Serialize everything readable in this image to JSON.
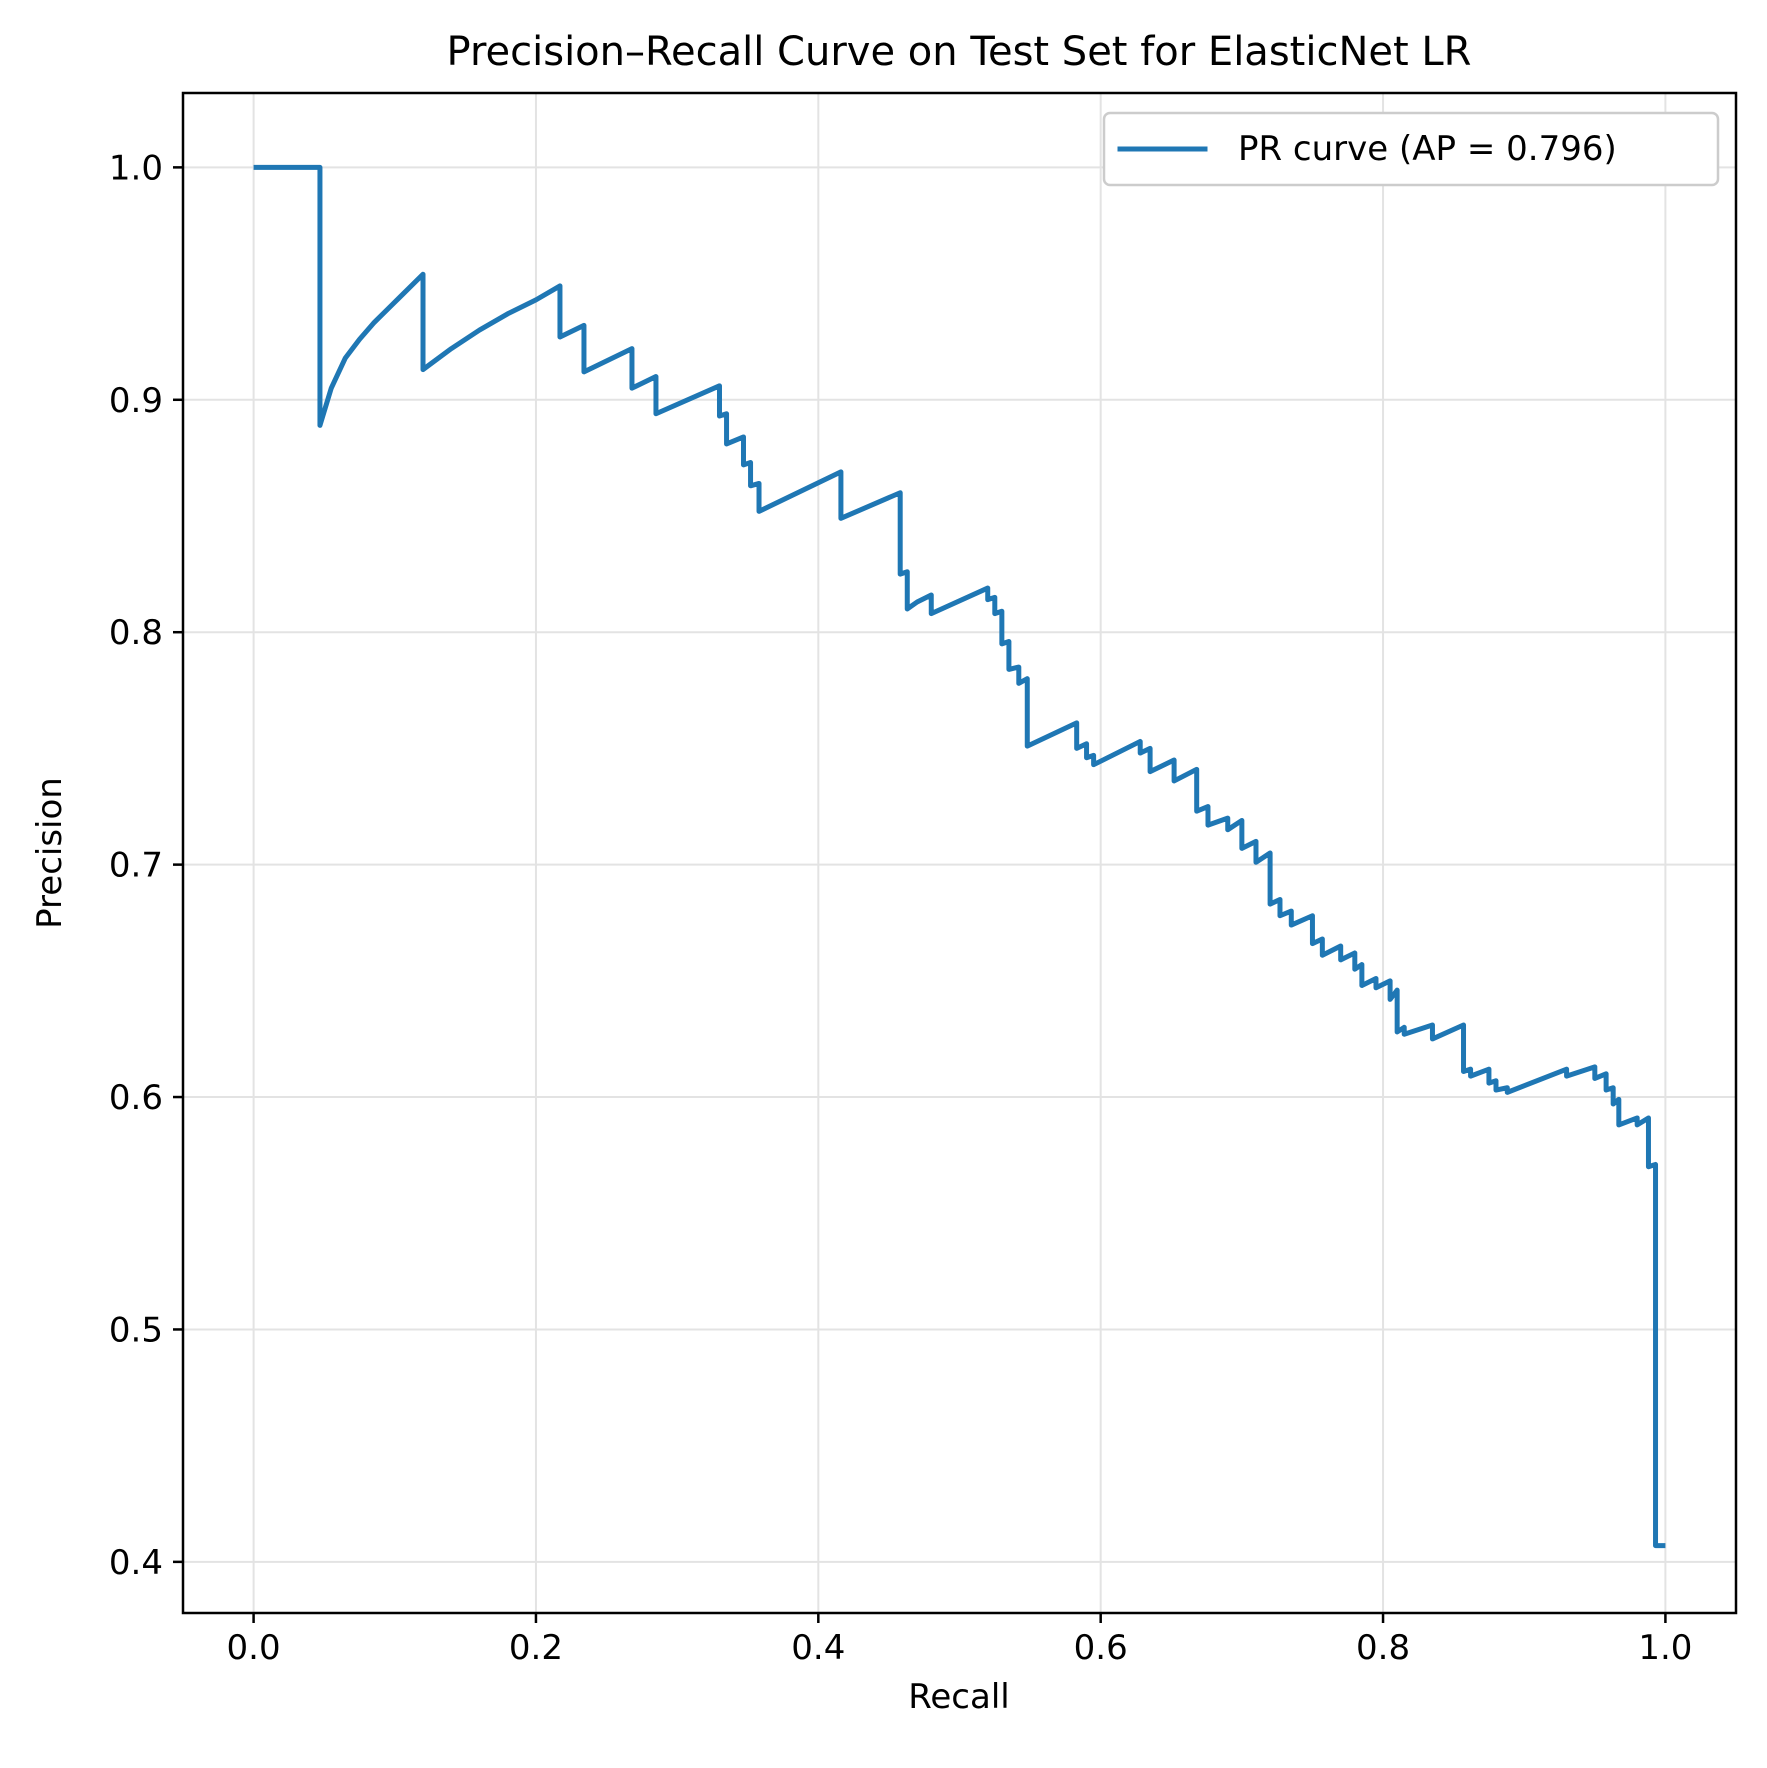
{
  "chart_data": {
    "type": "line",
    "title": "Precision–Recall Curve on Test Set for ElasticNet LR",
    "xlabel": "Recall",
    "ylabel": "Precision",
    "xlim": [
      -0.05,
      1.05
    ],
    "ylim": [
      0.378,
      1.032
    ],
    "xticks": [
      0.0,
      0.2,
      0.4,
      0.6,
      0.8,
      1.0
    ],
    "xtick_labels": [
      "0.0",
      "0.2",
      "0.4",
      "0.6",
      "0.8",
      "1.0"
    ],
    "yticks": [
      0.4,
      0.5,
      0.6,
      0.7,
      0.8,
      0.9,
      1.0
    ],
    "ytick_labels": [
      "0.4",
      "0.5",
      "0.6",
      "0.7",
      "0.8",
      "0.9",
      "1.0"
    ],
    "grid": true,
    "legend_position": "top-right",
    "series": [
      {
        "name": "PR curve (AP = 0.796)",
        "color": "#1f77b4",
        "points": [
          [
            0.0,
            1.0
          ],
          [
            0.047,
            1.0
          ],
          [
            0.047,
            0.889
          ],
          [
            0.055,
            0.905
          ],
          [
            0.065,
            0.918
          ],
          [
            0.075,
            0.926
          ],
          [
            0.085,
            0.933
          ],
          [
            0.095,
            0.939
          ],
          [
            0.105,
            0.945
          ],
          [
            0.12,
            0.954
          ],
          [
            0.12,
            0.913
          ],
          [
            0.14,
            0.922
          ],
          [
            0.16,
            0.93
          ],
          [
            0.18,
            0.937
          ],
          [
            0.2,
            0.943
          ],
          [
            0.217,
            0.949
          ],
          [
            0.217,
            0.927
          ],
          [
            0.234,
            0.932
          ],
          [
            0.234,
            0.912
          ],
          [
            0.268,
            0.922
          ],
          [
            0.268,
            0.905
          ],
          [
            0.285,
            0.91
          ],
          [
            0.285,
            0.894
          ],
          [
            0.33,
            0.906
          ],
          [
            0.33,
            0.893
          ],
          [
            0.335,
            0.894
          ],
          [
            0.335,
            0.881
          ],
          [
            0.347,
            0.884
          ],
          [
            0.347,
            0.872
          ],
          [
            0.352,
            0.873
          ],
          [
            0.352,
            0.863
          ],
          [
            0.358,
            0.864
          ],
          [
            0.358,
            0.852
          ],
          [
            0.416,
            0.869
          ],
          [
            0.416,
            0.849
          ],
          [
            0.458,
            0.86
          ],
          [
            0.458,
            0.825
          ],
          [
            0.463,
            0.826
          ],
          [
            0.463,
            0.81
          ],
          [
            0.47,
            0.813
          ],
          [
            0.47,
            0.813
          ],
          [
            0.48,
            0.816
          ],
          [
            0.48,
            0.808
          ],
          [
            0.52,
            0.819
          ],
          [
            0.52,
            0.814
          ],
          [
            0.525,
            0.815
          ],
          [
            0.525,
            0.808
          ],
          [
            0.53,
            0.809
          ],
          [
            0.53,
            0.795
          ],
          [
            0.535,
            0.796
          ],
          [
            0.535,
            0.784
          ],
          [
            0.542,
            0.785
          ],
          [
            0.542,
            0.778
          ],
          [
            0.548,
            0.78
          ],
          [
            0.548,
            0.751
          ],
          [
            0.583,
            0.761
          ],
          [
            0.583,
            0.75
          ],
          [
            0.59,
            0.752
          ],
          [
            0.59,
            0.746
          ],
          [
            0.595,
            0.747
          ],
          [
            0.595,
            0.743
          ],
          [
            0.628,
            0.753
          ],
          [
            0.628,
            0.748
          ],
          [
            0.635,
            0.75
          ],
          [
            0.635,
            0.74
          ],
          [
            0.652,
            0.745
          ],
          [
            0.652,
            0.736
          ],
          [
            0.668,
            0.741
          ],
          [
            0.668,
            0.723
          ],
          [
            0.676,
            0.725
          ],
          [
            0.676,
            0.717
          ],
          [
            0.69,
            0.72
          ],
          [
            0.69,
            0.715
          ],
          [
            0.7,
            0.719
          ],
          [
            0.7,
            0.707
          ],
          [
            0.71,
            0.71
          ],
          [
            0.71,
            0.701
          ],
          [
            0.72,
            0.705
          ],
          [
            0.72,
            0.683
          ],
          [
            0.727,
            0.685
          ],
          [
            0.727,
            0.678
          ],
          [
            0.735,
            0.68
          ],
          [
            0.735,
            0.674
          ],
          [
            0.75,
            0.678
          ],
          [
            0.75,
            0.666
          ],
          [
            0.757,
            0.668
          ],
          [
            0.757,
            0.661
          ],
          [
            0.77,
            0.665
          ],
          [
            0.77,
            0.659
          ],
          [
            0.78,
            0.662
          ],
          [
            0.78,
            0.655
          ],
          [
            0.785,
            0.657
          ],
          [
            0.785,
            0.648
          ],
          [
            0.795,
            0.651
          ],
          [
            0.795,
            0.647
          ],
          [
            0.805,
            0.65
          ],
          [
            0.805,
            0.642
          ],
          [
            0.81,
            0.646
          ],
          [
            0.81,
            0.628
          ],
          [
            0.815,
            0.63
          ],
          [
            0.815,
            0.627
          ],
          [
            0.835,
            0.631
          ],
          [
            0.835,
            0.625
          ],
          [
            0.857,
            0.631
          ],
          [
            0.857,
            0.611
          ],
          [
            0.862,
            0.612
          ],
          [
            0.862,
            0.609
          ],
          [
            0.875,
            0.612
          ],
          [
            0.875,
            0.606
          ],
          [
            0.88,
            0.607
          ],
          [
            0.88,
            0.603
          ],
          [
            0.888,
            0.604
          ],
          [
            0.888,
            0.602
          ],
          [
            0.93,
            0.612
          ],
          [
            0.93,
            0.609
          ],
          [
            0.95,
            0.613
          ],
          [
            0.95,
            0.608
          ],
          [
            0.958,
            0.61
          ],
          [
            0.958,
            0.603
          ],
          [
            0.963,
            0.604
          ],
          [
            0.963,
            0.597
          ],
          [
            0.967,
            0.599
          ],
          [
            0.967,
            0.588
          ],
          [
            0.98,
            0.591
          ],
          [
            0.98,
            0.588
          ],
          [
            0.988,
            0.591
          ],
          [
            0.988,
            0.57
          ],
          [
            0.993,
            0.571
          ],
          [
            0.993,
            0.407
          ],
          [
            1.0,
            0.407
          ]
        ]
      }
    ]
  }
}
